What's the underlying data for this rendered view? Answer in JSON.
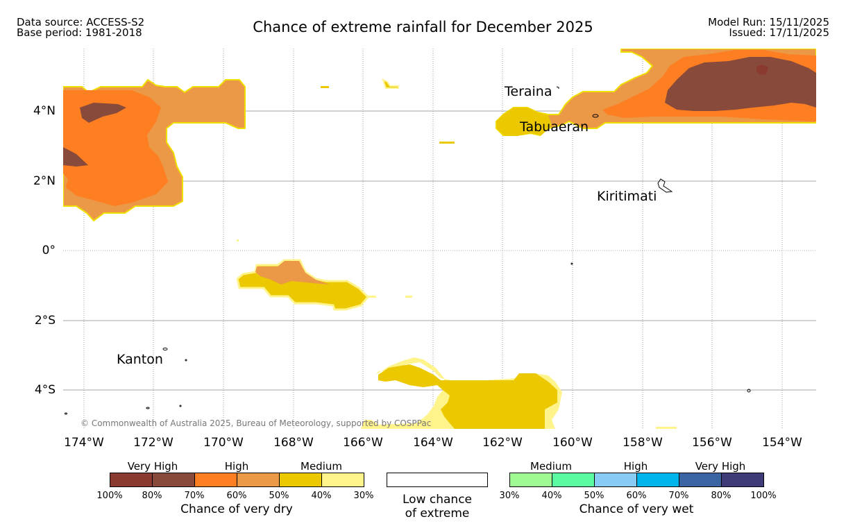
{
  "header": {
    "source_line1": "Data source: ACCESS-S2",
    "source_line2": "Base period: 1981-2018",
    "title": "Chance of extreme rainfall for December 2025",
    "model_run": "Model Run: 15/11/2025",
    "issued": "Issued: 17/11/2025"
  },
  "map": {
    "lat_labels": [
      "4°N",
      "2°N",
      "0°",
      "2°S",
      "4°S"
    ],
    "lon_labels": [
      "174°W",
      "172°W",
      "170°W",
      "168°W",
      "166°W",
      "164°W",
      "162°W",
      "160°W",
      "158°W",
      "156°W",
      "154°W"
    ],
    "places": {
      "teraina": "Teraina",
      "tabuaeran": "Tabuaeran",
      "kiritimati": "Kiritimati",
      "kanton": "Kanton"
    },
    "credit": "© Commonwealth of Australia 2025, Bureau of Meteorology, supported by COSPPac"
  },
  "legend": {
    "dry": {
      "categories": [
        "Very High",
        "High",
        "Medium"
      ],
      "colors": [
        "#8b3a2f",
        "#884a3a",
        "#fd7f22",
        "#eb9947",
        "#ebc800",
        "#fff38c"
      ],
      "ticks": [
        "100%",
        "80%",
        "70%",
        "60%",
        "50%",
        "40%",
        "30%"
      ],
      "title": "Chance of very dry"
    },
    "low": {
      "line1": "Low chance",
      "line2": "of extreme"
    },
    "wet": {
      "categories": [
        "Medium",
        "High",
        "Very High"
      ],
      "colors": [
        "#a0fa94",
        "#5bfba2",
        "#88ccf5",
        "#00b4ec",
        "#3a64a2",
        "#3f3b79"
      ],
      "ticks": [
        "30%",
        "40%",
        "50%",
        "60%",
        "70%",
        "80%",
        "100%"
      ],
      "title": "Chance of very wet"
    }
  }
}
